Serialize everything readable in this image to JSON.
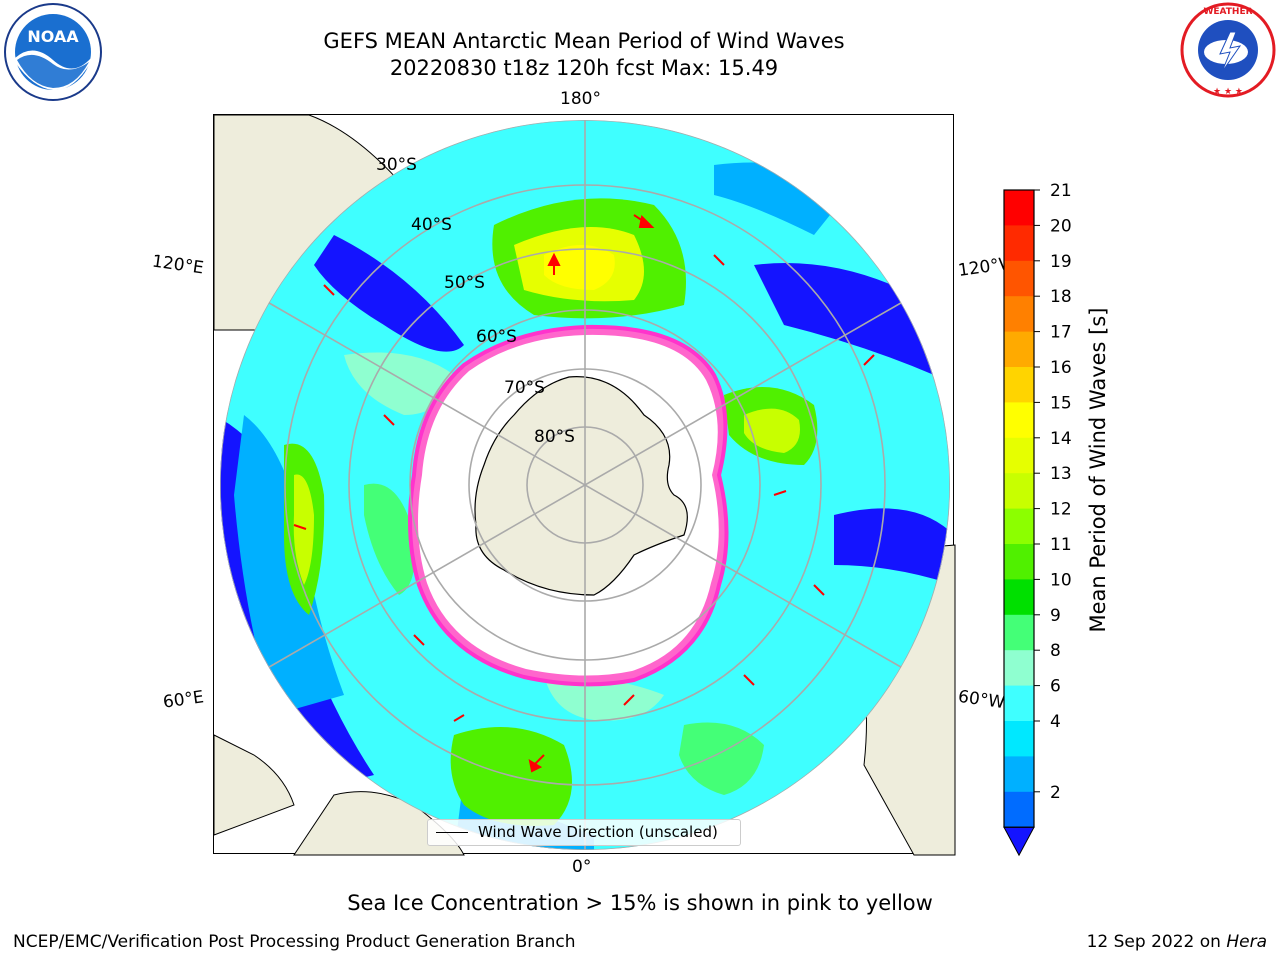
{
  "title_line1": "GEFS MEAN Antarctic Mean Period of Wind Waves",
  "title_line2": "20220830 t18z 120h fcst   Max: 15.49",
  "logos": {
    "left": "noara-logo",
    "right": "national-weather-service-logo"
  },
  "map": {
    "lon_labels": {
      "top": "180°",
      "bottom": "0°",
      "left_upper": "120°E",
      "left_lower": "60°E",
      "right_upper": "120°W",
      "right_lower": "60°W"
    },
    "lat_labels": [
      "30°S",
      "40°S",
      "50°S",
      "60°S",
      "70°S",
      "80°S"
    ],
    "sea_ice_note": "Sea Ice Concentration > 15% is shown in pink to yellow",
    "legend": "Wind Wave Direction (unscaled)"
  },
  "colorbar": {
    "label": "Mean Period of Wind Waves [s]",
    "ticks": [
      "21",
      "20",
      "19",
      "18",
      "17",
      "16",
      "15",
      "14",
      "13",
      "12",
      "11",
      "10",
      "9",
      "8",
      "6",
      "4",
      "2"
    ],
    "colors": [
      "#ff0000",
      "#ff2a00",
      "#ff5500",
      "#ff8000",
      "#ffaa00",
      "#ffd400",
      "#ffff00",
      "#e6ff00",
      "#c8ff00",
      "#8cff00",
      "#50f000",
      "#00e000",
      "#44ff77",
      "#8fffd0",
      "#3fffff",
      "#00e8ff",
      "#00b0ff",
      "#006cff"
    ],
    "extend_color": "#1414ff"
  },
  "footer": {
    "credit": "NCEP/EMC/Verification Post Processing Product Generation Branch",
    "date": "12 Sep 2022 on",
    "machine": "Hera"
  }
}
